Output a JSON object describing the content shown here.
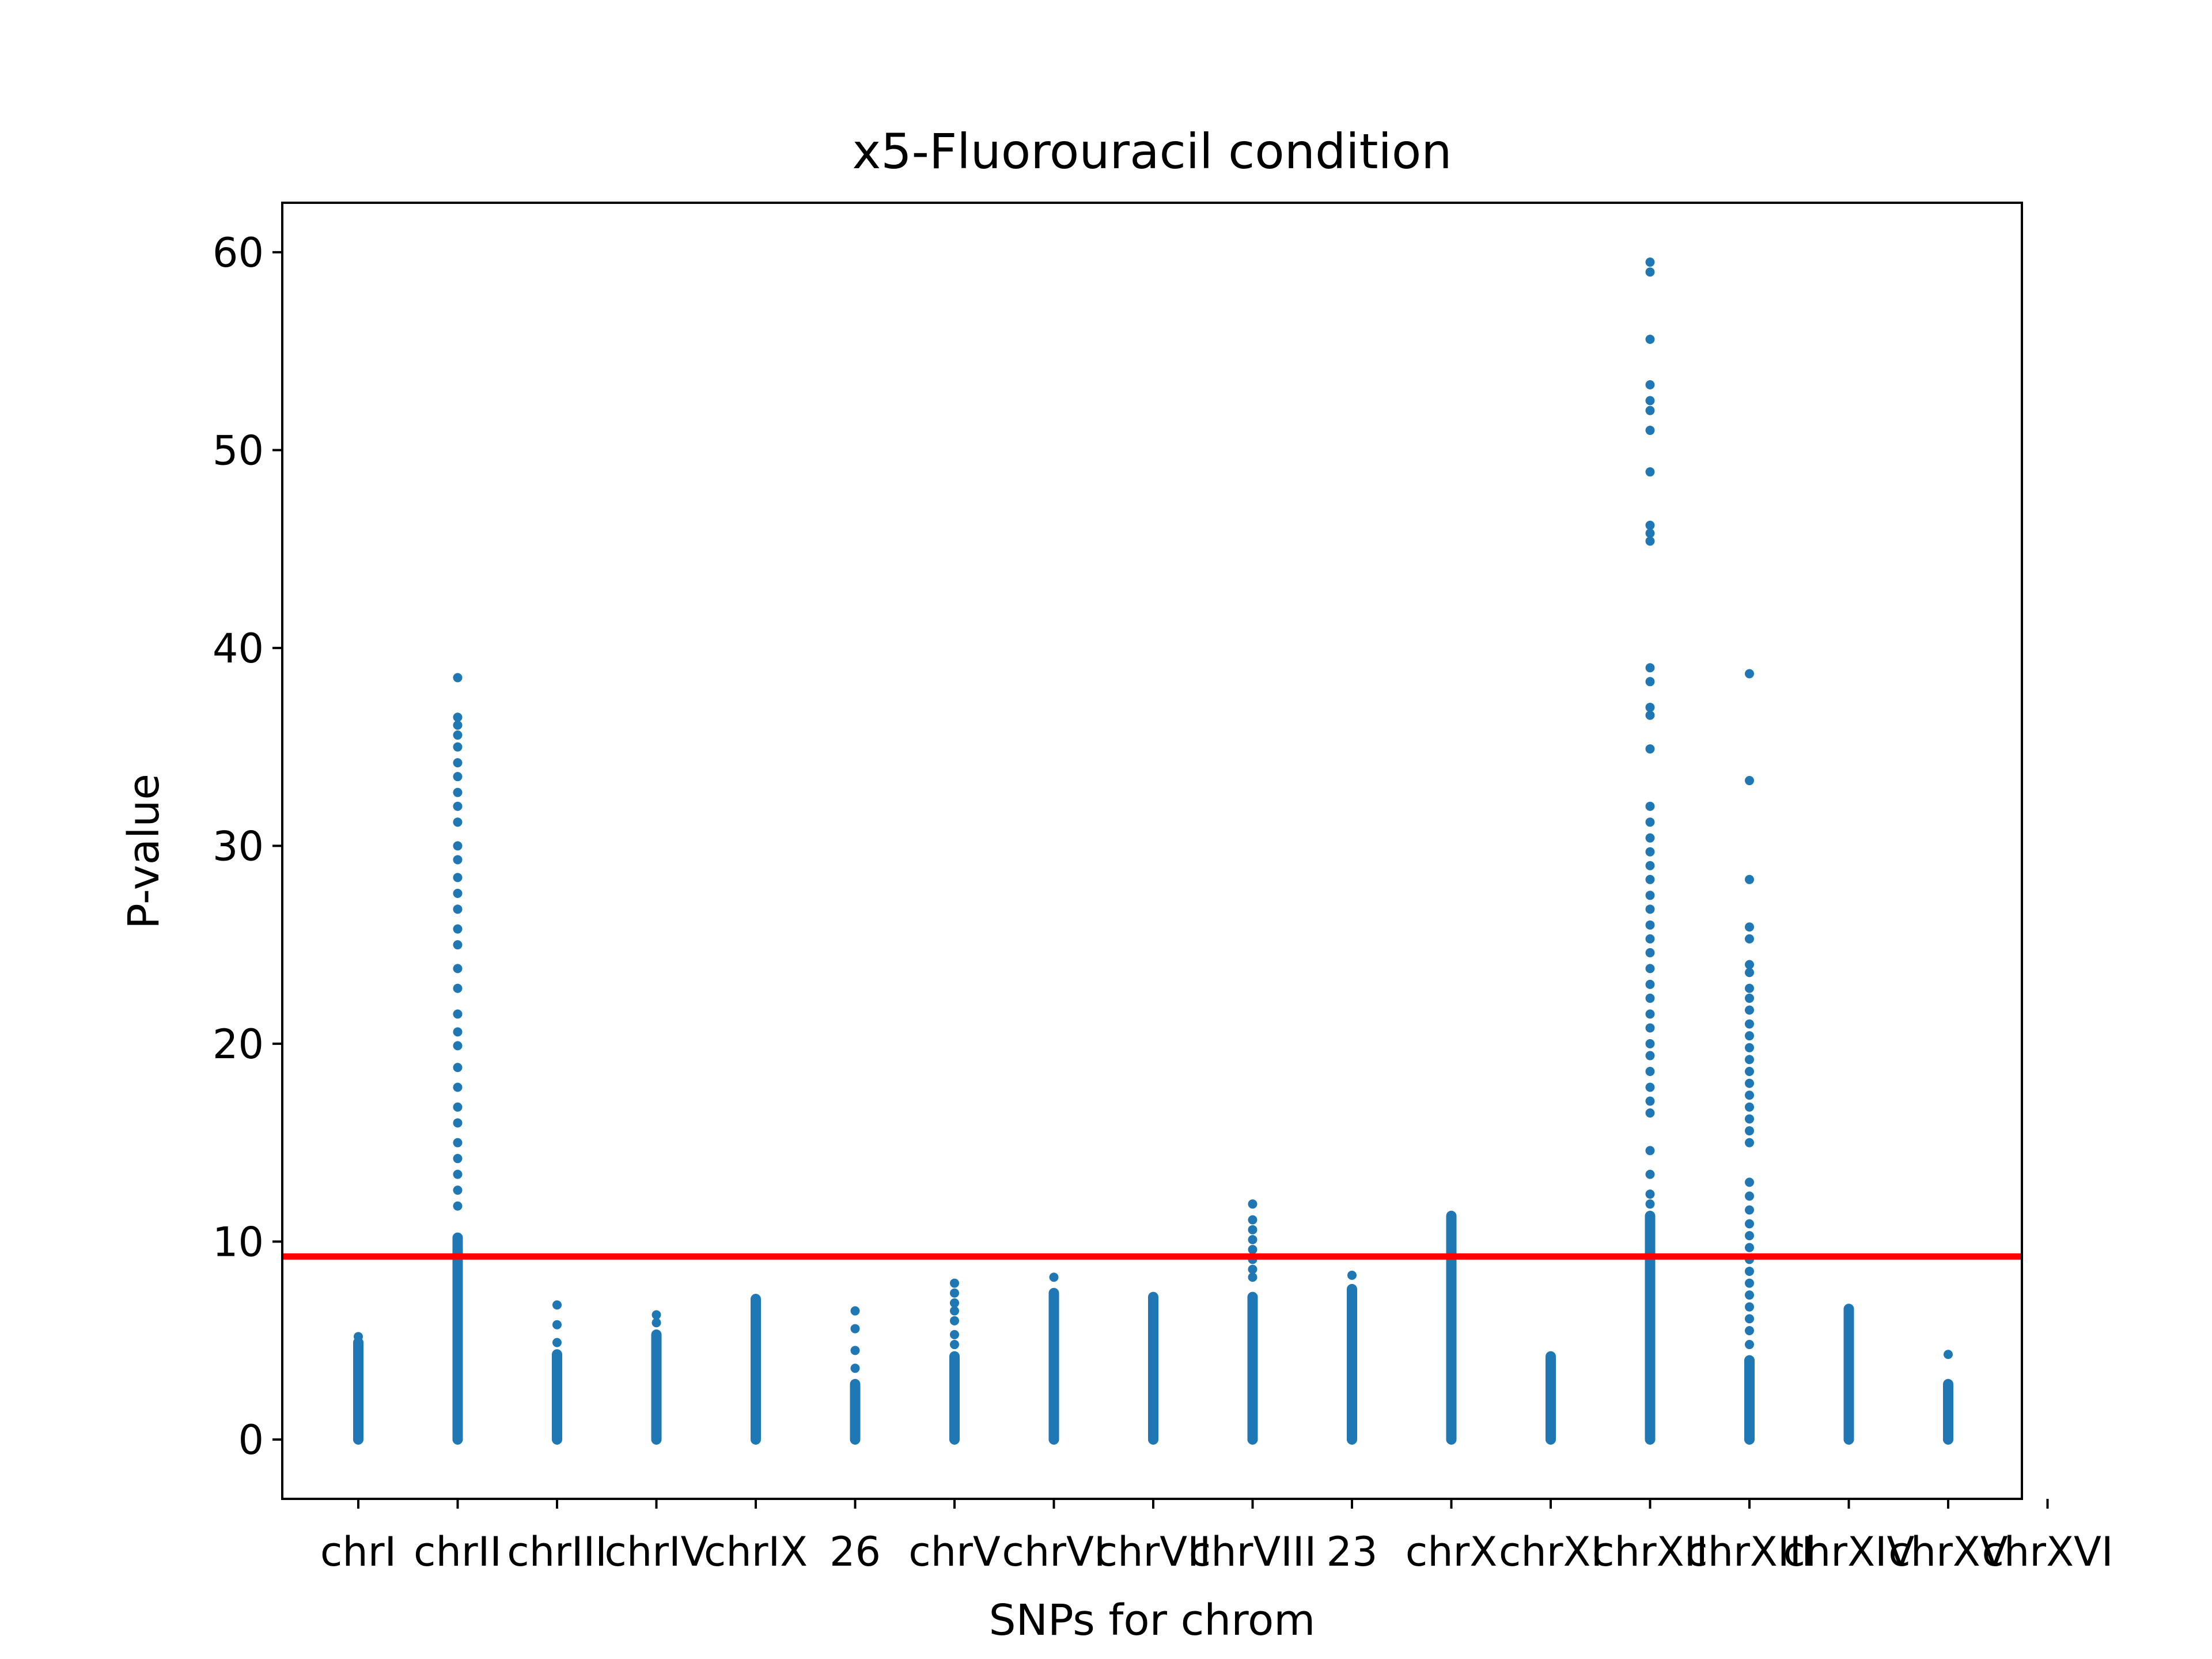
{
  "chart_data": {
    "type": "scatter",
    "title": "x5-Fluorouracil condition",
    "xlabel": "SNPs for chrom",
    "ylabel": "P-value",
    "ylim": [
      -3,
      62.5
    ],
    "yticks": [
      0,
      10,
      20,
      30,
      40,
      50,
      60
    ],
    "grid": false,
    "threshold": 9.25,
    "colors": {
      "points": "#1f77b4",
      "threshold": "#ff0000",
      "axes": "#000000"
    },
    "categories": [
      "chrI",
      "chrII",
      "chrIII",
      "chrIV",
      "chrIX",
      "26",
      "chrV",
      "chrVI",
      "chrVII",
      "chrVIII",
      "23",
      "chrX",
      "chrXI",
      "chrXII",
      "chrXIII",
      "chrXIV",
      "chrXV",
      "chrXVI"
    ],
    "series": [
      {
        "category": "chrI",
        "dense_max": 4.9,
        "points": [
          5.2
        ]
      },
      {
        "category": "chrII",
        "dense_max": 10.2,
        "points": [
          38.5,
          36.5,
          36.1,
          35.6,
          35.0,
          34.2,
          33.5,
          32.7,
          32.0,
          31.2,
          30.0,
          29.3,
          28.4,
          27.6,
          26.8,
          25.8,
          25.0,
          23.8,
          22.8,
          21.5,
          20.6,
          19.9,
          18.8,
          17.8,
          16.8,
          16.0,
          15.0,
          14.2,
          13.4,
          12.6,
          11.8
        ]
      },
      {
        "category": "chrIII",
        "dense_max": 4.3,
        "points": [
          6.8,
          5.8,
          4.9
        ]
      },
      {
        "category": "chrIV",
        "dense_max": 5.3,
        "points": [
          6.3,
          5.9
        ]
      },
      {
        "category": "chrIX",
        "dense_max": 7.1,
        "points": []
      },
      {
        "category": "26",
        "dense_max": 2.8,
        "points": [
          6.5,
          5.6,
          4.5,
          3.6
        ]
      },
      {
        "category": "chrV",
        "dense_max": 4.2,
        "points": [
          7.9,
          7.4,
          6.9,
          6.5,
          6.0,
          5.3,
          4.8
        ]
      },
      {
        "category": "chrVI",
        "dense_max": 7.4,
        "points": [
          8.2
        ]
      },
      {
        "category": "chrVII",
        "dense_max": 7.2,
        "points": []
      },
      {
        "category": "chrVIII",
        "dense_max": 7.2,
        "points": [
          11.9,
          11.1,
          10.6,
          10.1,
          9.6,
          9.1,
          8.6,
          8.2
        ]
      },
      {
        "category": "23",
        "dense_max": 7.6,
        "points": [
          8.3
        ]
      },
      {
        "category": "chrX",
        "dense_max": 11.3,
        "points": []
      },
      {
        "category": "chrXI",
        "dense_max": 4.2,
        "points": []
      },
      {
        "category": "chrXII",
        "dense_max": 11.3,
        "points": [
          59.5,
          59.0,
          55.6,
          53.3,
          52.5,
          52.0,
          51.0,
          48.9,
          46.2,
          45.8,
          45.4,
          39.0,
          38.3,
          37.0,
          36.6,
          34.9,
          32.0,
          31.2,
          30.4,
          29.7,
          29.0,
          28.3,
          27.5,
          26.8,
          26.0,
          25.3,
          24.6,
          23.8,
          23.0,
          22.3,
          21.5,
          20.8,
          20.0,
          19.4,
          18.6,
          17.8,
          17.1,
          16.5,
          14.6,
          13.4,
          12.4,
          11.9
        ]
      },
      {
        "category": "chrXIII",
        "dense_max": 4.0,
        "points": [
          38.7,
          33.3,
          28.3,
          25.9,
          25.3,
          24.0,
          23.6,
          22.8,
          22.3,
          21.7,
          21.0,
          20.4,
          19.8,
          19.2,
          18.6,
          18.0,
          17.4,
          16.8,
          16.2,
          15.6,
          15.0,
          13.0,
          12.3,
          11.6,
          10.9,
          10.3,
          9.7,
          9.1,
          8.5,
          7.9,
          7.3,
          6.7,
          6.1,
          5.5,
          4.8
        ]
      },
      {
        "category": "chrXIV",
        "dense_max": 6.6,
        "points": []
      },
      {
        "category": "chrXV",
        "dense_max": 2.8,
        "points": [
          4.3
        ]
      }
    ]
  }
}
